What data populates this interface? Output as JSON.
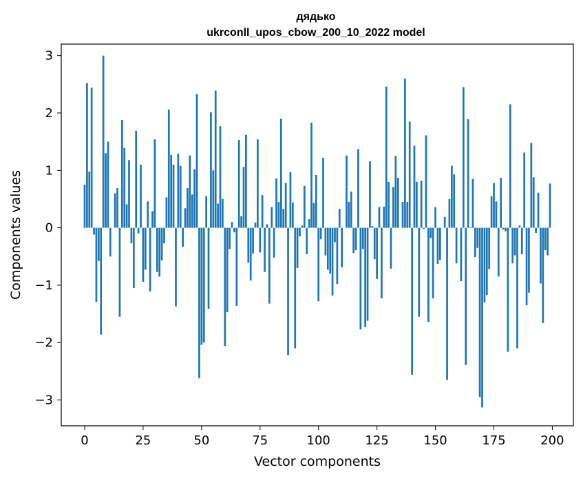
{
  "chart_data": {
    "type": "bar",
    "title_line1": "дядько",
    "title_line2": "ukrconll_upos_cbow_200_10_2022 model",
    "xlabel": "Vector components",
    "ylabel": "Components values",
    "xlim": [
      -10,
      209
    ],
    "ylim": [
      -3.45,
      3.2
    ],
    "xticks": [
      0,
      25,
      50,
      75,
      100,
      125,
      150,
      175,
      200
    ],
    "xtick_labels": [
      "0",
      "25",
      "50",
      "75",
      "100",
      "125",
      "150",
      "175",
      "200"
    ],
    "yticks": [
      3,
      2,
      1,
      0,
      -1,
      -2,
      -3
    ],
    "ytick_labels": [
      "3",
      "2",
      "1",
      "0",
      "−1",
      "−2",
      "−3"
    ],
    "grid": false,
    "bar_color": "#1f77b4",
    "values": [
      0.75,
      2.52,
      0.98,
      2.44,
      -0.12,
      -1.29,
      -0.58,
      -1.86,
      3.0,
      1.3,
      1.5,
      -0.5,
      0.0,
      0.6,
      0.69,
      -1.55,
      1.88,
      1.39,
      0.41,
      1.18,
      -0.27,
      -1.05,
      1.69,
      -0.1,
      1.1,
      -0.94,
      -0.73,
      0.46,
      -1.11,
      0.29,
      1.54,
      -0.77,
      -0.85,
      -0.57,
      -0.27,
      0.53,
      2.06,
      1.27,
      1.1,
      -1.37,
      1.29,
      1.08,
      -0.33,
      0.34,
      0.69,
      1.26,
      0.58,
      1.02,
      2.33,
      -2.62,
      -2.04,
      -2.0,
      0.55,
      -1.41,
      2.01,
      1.0,
      2.39,
      0.42,
      1.77,
      0.5,
      -2.06,
      -1.47,
      -0.37,
      0.1,
      -0.08,
      -1.36,
      1.53,
      0.2,
      1.06,
      1.62,
      -0.61,
      -0.92,
      -0.45,
      0.09,
      1.54,
      -0.43,
      0.57,
      -0.77,
      0.06,
      -1.32,
      0.36,
      -0.52,
      0.86,
      0.45,
      1.9,
      0.33,
      0.78,
      -2.22,
      0.97,
      0.44,
      -2.1,
      -0.7,
      -0.15,
      0.04,
      0.73,
      -0.46,
      0.15,
      1.83,
      0.43,
      0.92,
      -1.28,
      -0.2,
      1.22,
      -0.48,
      -0.73,
      -0.8,
      -1.18,
      -0.25,
      -0.98,
      0.33,
      -0.69,
      0.0,
      1.26,
      0.45,
      0.63,
      -0.44,
      -0.39,
      1.37,
      -1.77,
      -0.37,
      -1.73,
      -1.62,
      1.16,
      0.03,
      -0.55,
      -0.89,
      0.36,
      -1.23,
      0.37,
      2.46,
      0.8,
      -0.71,
      0.71,
      1.25,
      0.87,
      0.0,
      0.45,
      2.6,
      0.45,
      1.85,
      -2.56,
      1.43,
      0.8,
      -1.55,
      0.82,
      -0.02,
      1.61,
      -1.64,
      -0.18,
      -1.23,
      0.36,
      -0.63,
      -0.56,
      0.0,
      0.19,
      -2.65,
      0.5,
      1.08,
      0.93,
      -0.62,
      0.0,
      -0.93,
      2.45,
      -2.39,
      1.89,
      0.01,
      0.85,
      -0.51,
      -0.35,
      -2.95,
      -3.13,
      -1.3,
      -1.17,
      -0.72,
      0.55,
      0.78,
      0.46,
      -0.85,
      0.87,
      -0.03,
      -0.06,
      -2.16,
      2.15,
      -0.62,
      -0.48,
      -2.1,
      0.04,
      -0.46,
      1.31,
      -1.35,
      -1.13,
      1.48,
      0.88,
      -0.09,
      0.61,
      -0.97,
      -1.66,
      -0.39,
      -0.48,
      0.77
    ]
  }
}
